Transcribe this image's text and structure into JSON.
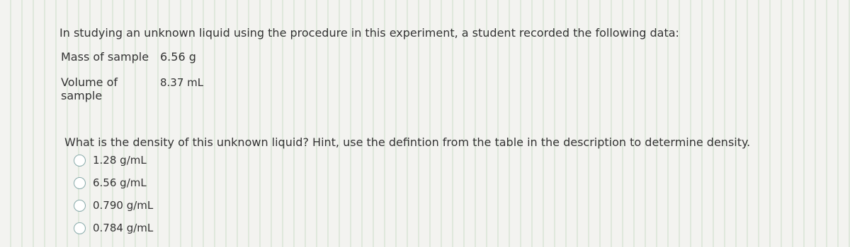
{
  "intro": "In studying an unknown liquid using the procedure in this experiment, a student recorded the following data:",
  "table": {
    "rows": [
      [
        "Mass of sample",
        "6.56 g"
      ],
      [
        "Volume of sample",
        "8.37 mL"
      ]
    ]
  },
  "question": "What is the density of this unknown liquid? Hint, use the defintion from the table in the description to determine density.",
  "options": [
    "1.28 g/mL",
    "6.56 g/mL",
    "0.790 g/mL",
    "0.784 g/mL"
  ]
}
